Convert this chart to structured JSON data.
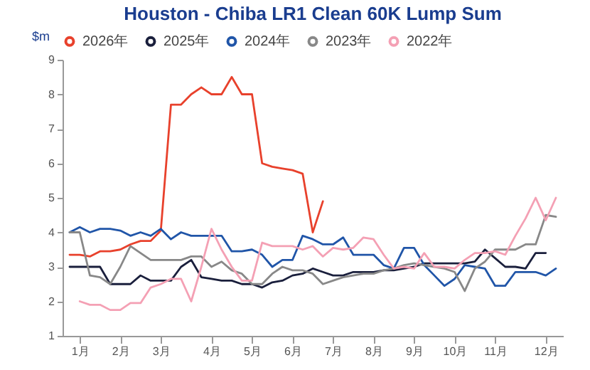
{
  "chart_data": {
    "type": "line",
    "title": "Houston - Chiba LR1 Clean 60K Lump Sum",
    "ylabel": "$m",
    "categories": [
      null,
      "1月",
      null,
      null,
      null,
      "2月",
      null,
      null,
      null,
      "3月",
      null,
      null,
      null,
      null,
      "4月",
      null,
      null,
      null,
      "5月",
      null,
      null,
      null,
      "6月",
      null,
      null,
      null,
      "7月",
      null,
      null,
      null,
      "8月",
      null,
      null,
      null,
      "9月",
      null,
      null,
      null,
      "10月",
      null,
      null,
      null,
      "11月",
      null,
      null,
      null,
      null,
      "12月",
      null
    ],
    "ylim": [
      1,
      9
    ],
    "yticks": [
      1,
      2,
      3,
      4,
      5,
      6,
      7,
      8,
      9
    ],
    "grid": false,
    "legend": "top",
    "marker": "none",
    "line_style": "solid",
    "series": [
      {
        "name": "2026年",
        "color": "#e8412c",
        "values": [
          3.35,
          3.35,
          3.3,
          3.45,
          3.45,
          3.5,
          3.65,
          3.75,
          3.75,
          4.05,
          7.7,
          7.7,
          8.0,
          8.2,
          8.0,
          8.0,
          8.5,
          8.0,
          8.0,
          6.0,
          5.9,
          5.85,
          5.8,
          5.7,
          4.0,
          4.9,
          null,
          null,
          null,
          null,
          null,
          null,
          null,
          null,
          null,
          null,
          null,
          null,
          null,
          null,
          null,
          null,
          null,
          null,
          null,
          null,
          null,
          null,
          null
        ]
      },
      {
        "name": "2025年",
        "color": "#1a1f3c",
        "values": [
          3.0,
          3.0,
          3.0,
          3.0,
          2.5,
          2.5,
          2.5,
          2.75,
          2.6,
          2.6,
          2.6,
          3.0,
          3.2,
          2.7,
          2.65,
          2.6,
          2.6,
          2.5,
          2.5,
          2.4,
          2.55,
          2.6,
          2.75,
          2.8,
          2.95,
          2.85,
          2.75,
          2.75,
          2.85,
          2.85,
          2.85,
          2.9,
          2.9,
          2.95,
          3.0,
          3.1,
          3.1,
          3.1,
          3.1,
          3.1,
          3.15,
          3.5,
          3.25,
          3.0,
          3.0,
          2.95,
          3.4,
          3.4,
          null
        ]
      },
      {
        "name": "2024年",
        "color": "#2055a8",
        "values": [
          4.0,
          4.15,
          4.0,
          4.1,
          4.1,
          4.05,
          3.9,
          4.0,
          3.9,
          4.1,
          3.8,
          4.0,
          3.9,
          3.9,
          3.9,
          3.9,
          3.45,
          3.45,
          3.5,
          3.35,
          3.0,
          3.2,
          3.2,
          3.9,
          3.8,
          3.65,
          3.65,
          3.85,
          3.35,
          3.35,
          3.35,
          3.05,
          2.95,
          3.55,
          3.55,
          3.05,
          2.75,
          2.45,
          2.65,
          3.05,
          3.0,
          2.95,
          2.45,
          2.45,
          2.85,
          2.85,
          2.85,
          2.75,
          2.95
        ]
      },
      {
        "name": "2023年",
        "color": "#888888",
        "values": [
          4.0,
          4.0,
          2.75,
          2.7,
          2.5,
          3.0,
          3.6,
          3.4,
          3.2,
          3.2,
          3.2,
          3.2,
          3.3,
          3.3,
          3.0,
          3.15,
          2.9,
          2.8,
          2.5,
          2.5,
          2.8,
          3.0,
          2.9,
          2.9,
          2.8,
          2.5,
          2.6,
          2.7,
          2.75,
          2.8,
          2.8,
          2.9,
          2.95,
          3.05,
          3.1,
          3.05,
          3.0,
          2.95,
          2.85,
          2.3,
          2.95,
          3.15,
          3.5,
          3.5,
          3.5,
          3.65,
          3.65,
          4.5,
          4.45
        ]
      },
      {
        "name": "2022年",
        "color": "#f4a0b4",
        "values": [
          null,
          2.0,
          1.9,
          1.9,
          1.75,
          1.75,
          1.95,
          1.95,
          2.4,
          2.5,
          2.65,
          2.65,
          2.0,
          3.0,
          4.1,
          3.5,
          3.0,
          2.6,
          2.6,
          3.7,
          3.6,
          3.6,
          3.6,
          3.5,
          3.6,
          3.3,
          3.55,
          3.5,
          3.55,
          3.85,
          3.8,
          3.35,
          2.95,
          3.0,
          2.95,
          3.4,
          3.0,
          3.0,
          2.95,
          3.2,
          3.4,
          3.4,
          3.45,
          3.35,
          3.9,
          4.4,
          5.0,
          4.35,
          5.0
        ]
      }
    ]
  }
}
